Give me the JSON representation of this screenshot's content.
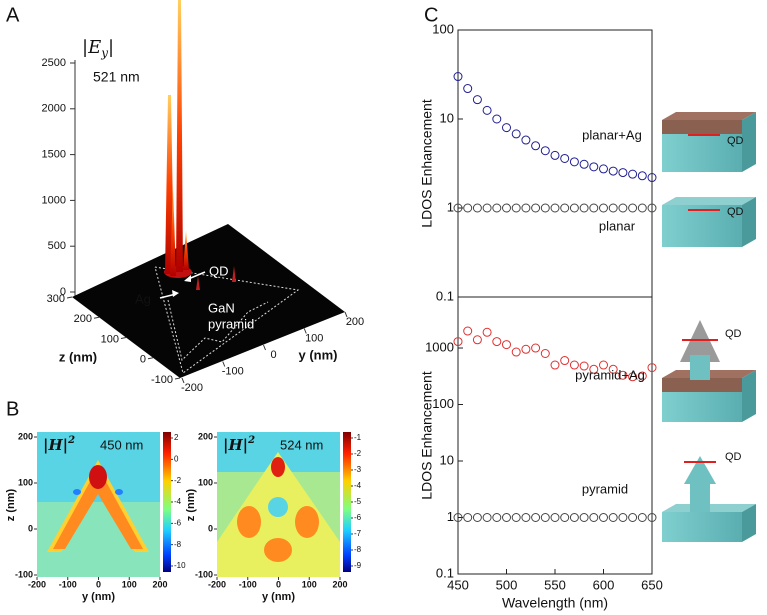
{
  "panel_labels": [
    "A",
    "B",
    "C"
  ],
  "panel_a": {
    "field_open": "|E",
    "field_sub": "y",
    "field_close": "|",
    "wavelength": "521 nm",
    "vticks": [
      0,
      500,
      1000,
      1500,
      2000,
      2500
    ],
    "zlabel": "z (nm)",
    "zticks": [
      300,
      200,
      100,
      0,
      -100
    ],
    "ylabel": "y (nm)",
    "yticks": [
      -200,
      -100,
      0,
      100,
      200
    ],
    "annotations": [
      "QD",
      "Ag",
      "GaN",
      "pyramid"
    ]
  },
  "panel_b": {
    "maps": [
      {
        "field": "|H|",
        "power": "2",
        "wavelength": "450 nm",
        "colorbar_ticks": [
          2,
          0,
          -2,
          -4,
          -6,
          -8,
          -10
        ],
        "xticks": [
          -200,
          -100,
          0,
          100,
          200
        ],
        "yticks": [
          200,
          100,
          0,
          -100
        ],
        "xlabel": "y (nm)",
        "ylabel": "z (nm)"
      },
      {
        "field": "|H|",
        "power": "2",
        "wavelength": "524 nm",
        "colorbar_ticks": [
          -1,
          -2,
          -3,
          -4,
          -5,
          -6,
          -7,
          -8,
          -9
        ],
        "xticks": [
          -200,
          -100,
          0,
          100,
          200
        ],
        "yticks": [
          200,
          100,
          0,
          -100
        ],
        "xlabel": "y (nm)",
        "ylabel": "z (nm)"
      }
    ]
  },
  "chart_data": [
    {
      "type": "scatter",
      "log_y": true,
      "ylabel": "LDOS Enhancement",
      "xlim": [
        450,
        650
      ],
      "ylim": [
        0.1,
        100
      ],
      "yticks": [
        0.1,
        1,
        10,
        100
      ],
      "series": [
        {
          "name": "planar+Ag",
          "color": "#1f1f8f",
          "x": [
            450,
            460,
            470,
            480,
            490,
            500,
            510,
            520,
            530,
            540,
            550,
            560,
            570,
            580,
            590,
            600,
            610,
            620,
            630,
            640,
            650
          ],
          "values": [
            30,
            22,
            16.5,
            12.5,
            10,
            8,
            6.8,
            5.8,
            5,
            4.4,
            3.9,
            3.6,
            3.3,
            3.1,
            2.9,
            2.75,
            2.6,
            2.5,
            2.4,
            2.3,
            2.2
          ]
        },
        {
          "name": "planar",
          "color": "#444444",
          "x": [
            450,
            460,
            470,
            480,
            490,
            500,
            510,
            520,
            530,
            540,
            550,
            560,
            570,
            580,
            590,
            600,
            610,
            620,
            630,
            640,
            650
          ],
          "values": [
            1,
            1,
            1,
            1,
            1,
            1,
            1,
            1,
            1,
            1,
            1,
            1,
            1,
            1,
            1,
            1,
            1,
            1,
            1,
            1,
            1
          ]
        }
      ]
    },
    {
      "type": "scatter",
      "log_y": true,
      "ylabel": "LDOS Enhancement",
      "xlabel": "Wavelength (nm)",
      "xlim": [
        450,
        650
      ],
      "ylim": [
        0.1,
        8000
      ],
      "xticks": [
        450,
        500,
        550,
        600,
        650
      ],
      "yticks": [
        0.1,
        1,
        10,
        100,
        1000
      ],
      "series": [
        {
          "name": "pyramid+Ag",
          "color": "#e03030",
          "x": [
            450,
            460,
            470,
            480,
            490,
            500,
            510,
            520,
            530,
            540,
            550,
            560,
            570,
            580,
            590,
            600,
            610,
            620,
            630,
            640,
            650
          ],
          "values": [
            1300,
            2000,
            1400,
            1900,
            1300,
            1150,
            850,
            950,
            1000,
            800,
            500,
            600,
            500,
            480,
            420,
            500,
            420,
            330,
            310,
            320,
            450
          ]
        },
        {
          "name": "pyramid",
          "color": "#444444",
          "x": [
            450,
            460,
            470,
            480,
            490,
            500,
            510,
            520,
            530,
            540,
            550,
            560,
            570,
            580,
            590,
            600,
            610,
            620,
            630,
            640,
            650
          ],
          "values": [
            1,
            1,
            1,
            1,
            1,
            1,
            1,
            1,
            1,
            1,
            1,
            1,
            1,
            1,
            1,
            1,
            1,
            1,
            1,
            1,
            1
          ]
        }
      ]
    }
  ],
  "schematics": [
    "QD",
    "QD",
    "QD",
    "QD"
  ]
}
